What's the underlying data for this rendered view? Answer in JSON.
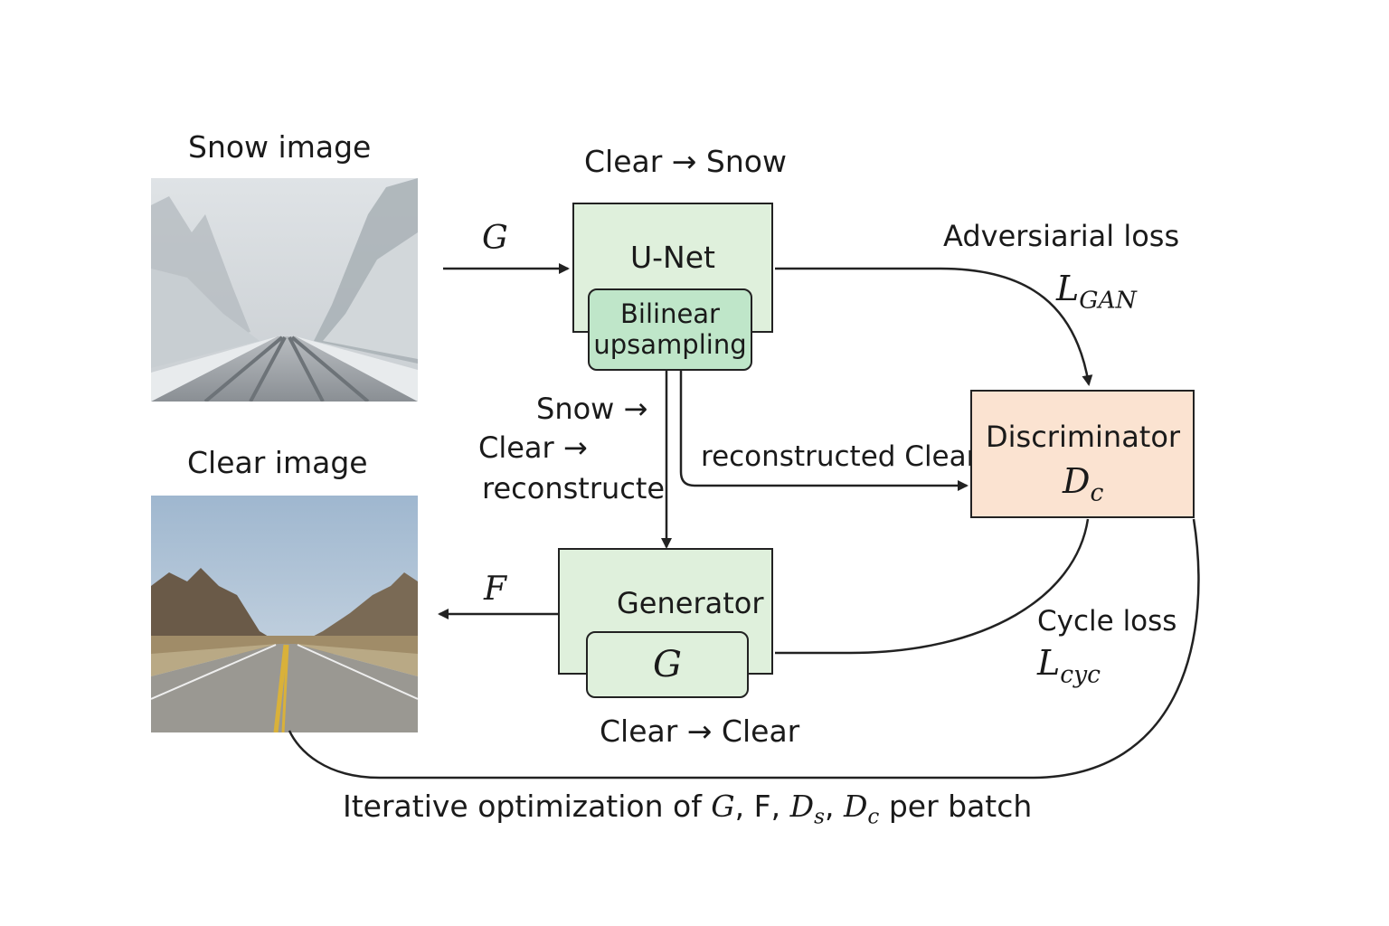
{
  "title_snow_image": "Snow image",
  "title_clear_image": "Clear image",
  "label_clear_to_snow": "Clear → Snow",
  "label_G_arrow": "G",
  "label_F_arrow": "F",
  "unet": {
    "title": "U-Net",
    "inner_line1": "Bilinear",
    "inner_line2": "upsampling"
  },
  "generator": {
    "title": "Generator",
    "inner": "G"
  },
  "discriminator": {
    "title": "Discriminator",
    "symbol": "D",
    "symbol_sub": "c"
  },
  "adversarial": {
    "label": "Adversiarial loss",
    "symbol": "L",
    "symbol_sub": "GAN"
  },
  "cycle": {
    "label": "Cycle loss",
    "symbol": "L",
    "symbol_sub": "cyc"
  },
  "snow_clear_text": {
    "line1": "Snow →",
    "line2": "Clear →",
    "line3": "reconstructe"
  },
  "reconstructed_clear": "reconstructed Clear",
  "clear_to_clear": "Clear → Clear",
  "footer": {
    "prefix": "Iterative optimization of ",
    "g": "G",
    "sep1": ", F, ",
    "ds_main": "D",
    "ds_sub": "s",
    "sep2": ", ",
    "dc_main": "D",
    "dc_sub": "c",
    "suffix": " per batch"
  },
  "colors": {
    "green_box": "#dff0dc",
    "green_inner": "#bfe6c9",
    "discriminator": "#fbe3d1",
    "stroke": "#222222"
  }
}
